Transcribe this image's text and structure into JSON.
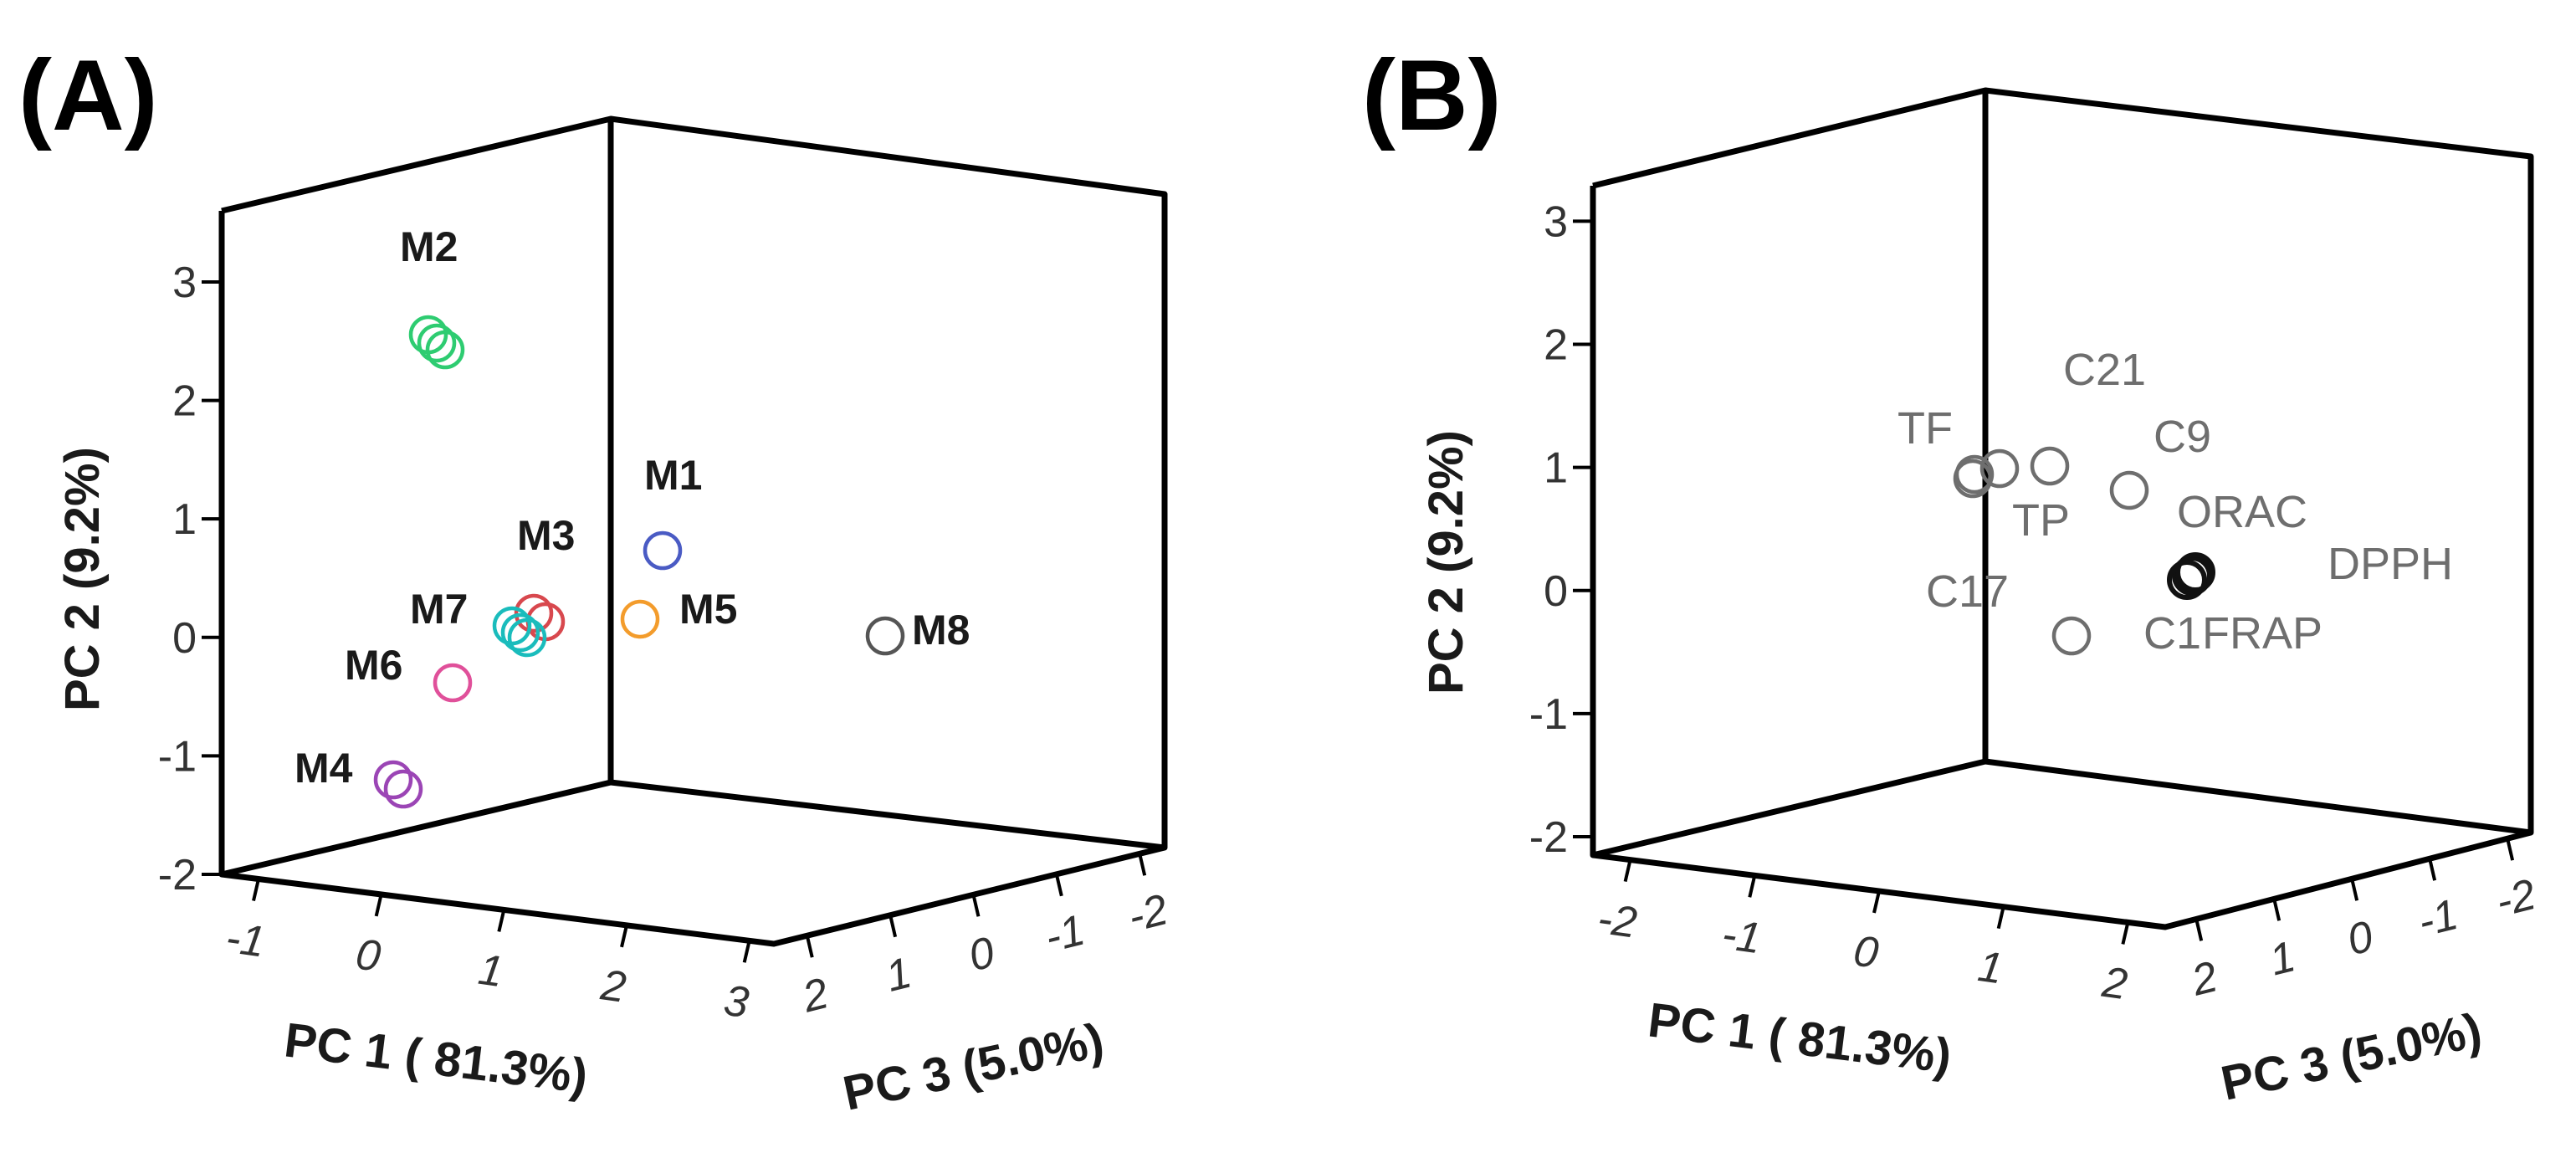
{
  "chart_data": [
    {
      "type": "scatter",
      "dimensions": 3,
      "panel_label": "(A)",
      "xlabel": "PC 1 ( 81.3%)",
      "ylabel": "PC 2 (9.2%)",
      "zlabel": "PC 3 (5.0%)",
      "x_ticks": [
        "-1",
        "0",
        "1",
        "2",
        "3"
      ],
      "y_ticks": [
        "-2",
        "-1",
        "0",
        "1",
        "2",
        "3"
      ],
      "z_ticks": [
        "2",
        "1",
        "0",
        "-1",
        "-2"
      ],
      "xlim": [
        -1.3,
        3.2
      ],
      "ylim": [
        -2,
        3.6
      ],
      "zlim": [
        -2.3,
        2.4
      ],
      "label_style": "bold",
      "points": [
        {
          "label": "M2",
          "color": "#2ecc71",
          "pts": [
            [
              0.1,
              2.5,
              0
            ],
            [
              0.15,
              2.45,
              -0.1
            ],
            [
              0.05,
              2.55,
              0.05
            ]
          ]
        },
        {
          "label": "M1",
          "color": "#4a5bc4",
          "pts": [
            [
              1.8,
              0.7,
              0
            ]
          ]
        },
        {
          "label": "M3",
          "color": "#d8484e",
          "pts": [
            [
              0.9,
              0.15,
              0
            ],
            [
              0.95,
              0.1,
              -0.1
            ]
          ]
        },
        {
          "label": "M5",
          "color": "#f39c2c",
          "pts": [
            [
              1.75,
              0.15,
              0
            ]
          ]
        },
        {
          "label": "M7",
          "color": "#1abcbc",
          "pts": [
            [
              0.7,
              0.05,
              0
            ],
            [
              0.8,
              0.0,
              0.1
            ],
            [
              0.75,
              0.1,
              -0.1
            ]
          ]
        },
        {
          "label": "M8",
          "color": "#555555",
          "pts": [
            [
              3.1,
              0.0,
              0
            ]
          ]
        },
        {
          "label": "M6",
          "color": "#e0509a",
          "pts": [
            [
              0.3,
              -0.4,
              0
            ]
          ]
        },
        {
          "label": "M4",
          "color": "#9b45b5",
          "pts": [
            [
              -0.2,
              -1.25,
              0
            ],
            [
              -0.15,
              -1.3,
              -0.1
            ]
          ]
        }
      ]
    },
    {
      "type": "scatter",
      "dimensions": 3,
      "panel_label": "(B)",
      "xlabel": "PC 1 ( 81.3%)",
      "ylabel": "PC 2 (9.2%)",
      "zlabel": "PC 3 (5.0%)",
      "x_ticks": [
        "-2",
        "-1",
        "0",
        "1",
        "2"
      ],
      "y_ticks": [
        "-2",
        "-1",
        "0",
        "1",
        "2",
        "3"
      ],
      "z_ticks": [
        "2",
        "1",
        "0",
        "-1",
        "-2"
      ],
      "xlim": [
        -2.3,
        2.3
      ],
      "ylim": [
        -2,
        3.3
      ],
      "zlim": [
        -2.3,
        2.4
      ],
      "label_style": "normal",
      "points": [
        {
          "label": "TF",
          "color": "#6e6e6e",
          "pts": [
            [
              0.95,
              0.9,
              0
            ]
          ]
        },
        {
          "label": "C21",
          "color": "#6e6e6e",
          "pts": [
            [
              1.45,
              0.95,
              0
            ]
          ]
        },
        {
          "label": "C9",
          "color": "#6e6e6e",
          "pts": [
            [
              2.1,
              0.75,
              0
            ]
          ]
        },
        {
          "label": "TP",
          "color": "#6e6e6e",
          "pts": [
            [
              0.85,
              0.8,
              0
            ]
          ]
        },
        {
          "label": "ORAC",
          "color": "#111111",
          "pts": [
            [
              2.35,
              0.05,
              0
            ]
          ]
        },
        {
          "label": "DPPH",
          "color": "#111111",
          "pts": [
            [
              2.38,
              0.02,
              0
            ]
          ]
        },
        {
          "label": "C17",
          "color": "#6e6e6e",
          "pts": [
            [
              0.9,
              0.95,
              0
            ]
          ]
        },
        {
          "label": "C1",
          "color": "#6e6e6e",
          "pts": [
            [
              1.5,
              -0.45,
              0
            ]
          ]
        },
        {
          "label": "FRAP",
          "color": "#111111",
          "pts": [
            [
              2.33,
              0.08,
              0
            ]
          ]
        }
      ]
    }
  ]
}
